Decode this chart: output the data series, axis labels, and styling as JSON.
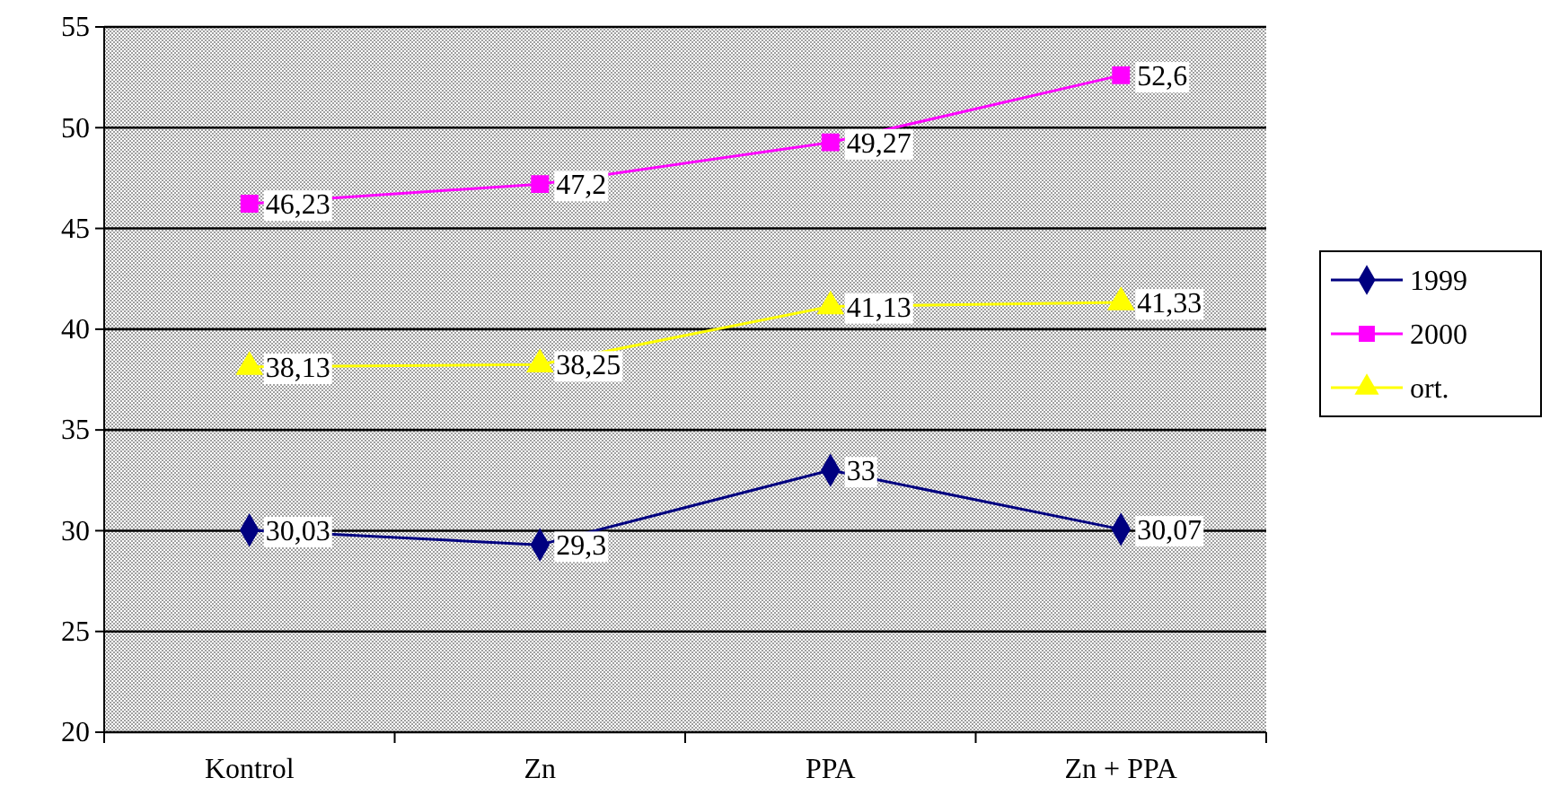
{
  "chart_data": {
    "type": "line",
    "categories": [
      "Kontrol",
      "Zn",
      "PPA",
      "Zn + PPA"
    ],
    "series": [
      {
        "name": "1999",
        "color": "#000080",
        "marker": "diamond",
        "values": [
          30.03,
          29.3,
          33,
          30.07
        ],
        "value_labels": [
          "30,03",
          "29,3",
          "33",
          "30,07"
        ]
      },
      {
        "name": "2000",
        "color": "#ff00ff",
        "marker": "square",
        "values": [
          46.23,
          47.2,
          49.27,
          52.6
        ],
        "value_labels": [
          "46,23",
          "47,2",
          "49,27",
          "52,6"
        ]
      },
      {
        "name": "ort.",
        "color": "#ffff00",
        "marker": "triangle",
        "values": [
          38.13,
          38.25,
          41.13,
          41.33
        ],
        "value_labels": [
          "38,13",
          "38,25",
          "41,13",
          "41,33"
        ]
      }
    ],
    "ylim": [
      20,
      55
    ],
    "yticks": [
      20,
      25,
      30,
      35,
      40,
      45,
      50,
      55
    ],
    "grid": "y",
    "legend": "right",
    "line_style": "solid"
  }
}
